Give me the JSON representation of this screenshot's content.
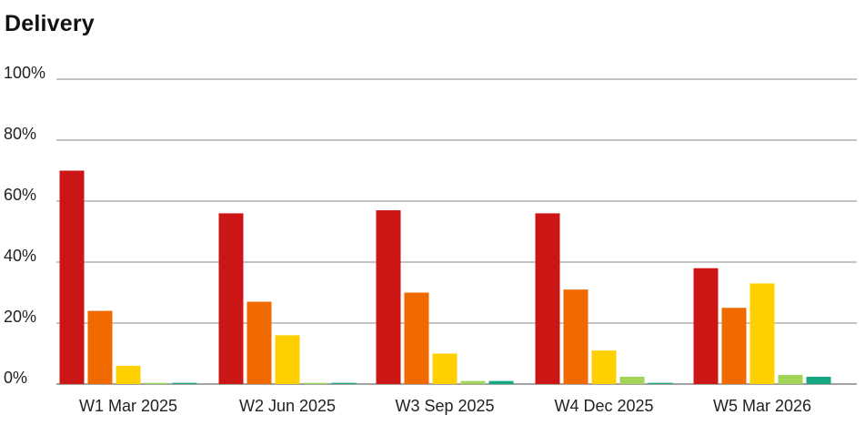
{
  "chart_data": {
    "type": "bar",
    "title": "Delivery",
    "xlabel": "",
    "ylabel": "",
    "ylim": [
      0,
      100
    ],
    "yticks": [
      "0%",
      "20%",
      "40%",
      "60%",
      "80%",
      "100%"
    ],
    "grid": true,
    "legend": "none",
    "categories": [
      "W1 Mar 2025",
      "W2 Jun 2025",
      "W3 Sep 2025",
      "W4 Dec 2025",
      "W5 Mar 2026"
    ],
    "series": [
      {
        "color": "#cc1616",
        "values": [
          70,
          56,
          57,
          56,
          38
        ]
      },
      {
        "color": "#f06a00",
        "values": [
          24,
          27,
          30,
          31,
          25
        ]
      },
      {
        "color": "#ffd000",
        "values": [
          6,
          16,
          10,
          11,
          33
        ]
      },
      {
        "color": "#a3d45a",
        "values": [
          0.4,
          0.4,
          1,
          2.4,
          3
        ]
      },
      {
        "color": "#16a883",
        "values": [
          0.4,
          0.4,
          1,
          0.4,
          2.4
        ]
      }
    ]
  }
}
